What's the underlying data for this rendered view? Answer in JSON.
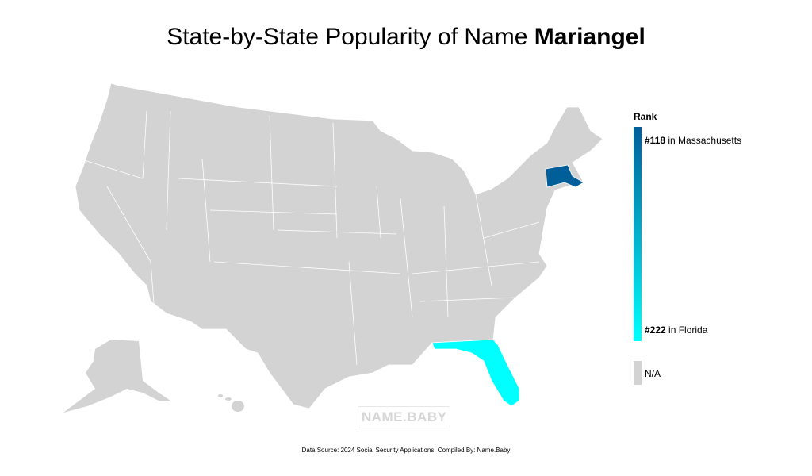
{
  "title": {
    "prefix": "State-by-State Popularity of Name ",
    "name": "Mariangel"
  },
  "legend": {
    "title": "Rank",
    "top": {
      "rank": "#118",
      "text": " in Massachusetts"
    },
    "bottom": {
      "rank": "#222",
      "text": " in Florida"
    },
    "na_label": "N/A",
    "colors": {
      "high": "#005f99",
      "low": "#00ffff",
      "na": "#d3d3d3"
    }
  },
  "states": [
    {
      "state": "Massachusetts",
      "rank": 118,
      "color": "#005f99"
    },
    {
      "state": "Florida",
      "rank": 222,
      "color": "#00ffff"
    }
  ],
  "watermark": "NAME.BABY",
  "footer": "Data Source: 2024 Social Security Applications; Compiled By: Name.Baby"
}
